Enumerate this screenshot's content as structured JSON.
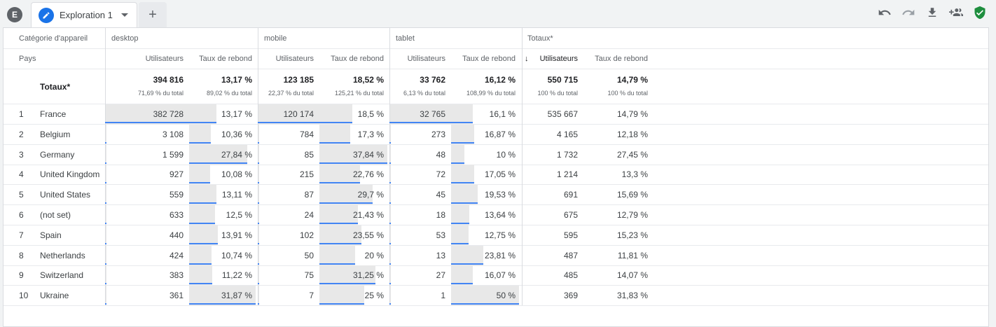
{
  "header": {
    "avatar_letter": "E",
    "tab_title": "Exploration 1",
    "add_tab_symbol": "+",
    "tools": [
      "undo-icon",
      "redo-icon",
      "download-icon",
      "share-icon",
      "shield-check-icon"
    ]
  },
  "colors": {
    "accent": "#1a73e8",
    "bar_fill": "#e8e8e8",
    "bar_line": "#4285f4",
    "shield": "#1e8e3e"
  },
  "table": {
    "dim_header": "Catégorie d'appareil",
    "row_dim_header": "Pays",
    "groups": [
      "desktop",
      "mobile",
      "tablet",
      "Totaux*"
    ],
    "metric_users": "Utilisateurs",
    "metric_bounce": "Taux de rebond",
    "sort_arrow": "↓",
    "totals_label": "Totaux*",
    "totals": [
      {
        "users": "394 816",
        "users_pct": "71,69 % du total",
        "bounce": "13,17 %",
        "bounce_pct": "89,02 % du total"
      },
      {
        "users": "123 185",
        "users_pct": "22,37 % du total",
        "bounce": "18,52 %",
        "bounce_pct": "125,21 % du total"
      },
      {
        "users": "33 762",
        "users_pct": "6,13 % du total",
        "bounce": "16,12 %",
        "bounce_pct": "108,99 % du total"
      },
      {
        "users": "550 715",
        "users_pct": "100 % du total",
        "bounce": "14,79 %",
        "bounce_pct": "100 % du total"
      }
    ],
    "rows": [
      {
        "idx": "1",
        "country": "France",
        "cells": [
          [
            "382 728",
            382728,
            "13,17 %",
            13.17
          ],
          [
            "120 174",
            120174,
            "18,5 %",
            18.5
          ],
          [
            "32 765",
            32765,
            "16,1 %",
            16.1
          ],
          [
            "535 667",
            535667,
            "14,79 %",
            14.79
          ]
        ]
      },
      {
        "idx": "2",
        "country": "Belgium",
        "cells": [
          [
            "3 108",
            3108,
            "10,36 %",
            10.36
          ],
          [
            "784",
            784,
            "17,3 %",
            17.3
          ],
          [
            "273",
            273,
            "16,87 %",
            16.87
          ],
          [
            "4 165",
            4165,
            "12,18 %",
            12.18
          ]
        ]
      },
      {
        "idx": "3",
        "country": "Germany",
        "cells": [
          [
            "1 599",
            1599,
            "27,84 %",
            27.84
          ],
          [
            "85",
            85,
            "37,84 %",
            37.84
          ],
          [
            "48",
            48,
            "10 %",
            10
          ],
          [
            "1 732",
            1732,
            "27,45 %",
            27.45
          ]
        ]
      },
      {
        "idx": "4",
        "country": "United Kingdom",
        "cells": [
          [
            "927",
            927,
            "10,08 %",
            10.08
          ],
          [
            "215",
            215,
            "22,76 %",
            22.76
          ],
          [
            "72",
            72,
            "17,05 %",
            17.05
          ],
          [
            "1 214",
            1214,
            "13,3 %",
            13.3
          ]
        ]
      },
      {
        "idx": "5",
        "country": "United States",
        "cells": [
          [
            "559",
            559,
            "13,11 %",
            13.11
          ],
          [
            "87",
            87,
            "29,7 %",
            29.7
          ],
          [
            "45",
            45,
            "19,53 %",
            19.53
          ],
          [
            "691",
            691,
            "15,69 %",
            15.69
          ]
        ]
      },
      {
        "idx": "6",
        "country": "(not set)",
        "cells": [
          [
            "633",
            633,
            "12,5 %",
            12.5
          ],
          [
            "24",
            24,
            "21,43 %",
            21.43
          ],
          [
            "18",
            18,
            "13,64 %",
            13.64
          ],
          [
            "675",
            675,
            "12,79 %",
            12.79
          ]
        ]
      },
      {
        "idx": "7",
        "country": "Spain",
        "cells": [
          [
            "440",
            440,
            "13,91 %",
            13.91
          ],
          [
            "102",
            102,
            "23,55 %",
            23.55
          ],
          [
            "53",
            53,
            "12,75 %",
            12.75
          ],
          [
            "595",
            595,
            "15,23 %",
            15.23
          ]
        ]
      },
      {
        "idx": "8",
        "country": "Netherlands",
        "cells": [
          [
            "424",
            424,
            "10,74 %",
            10.74
          ],
          [
            "50",
            50,
            "20 %",
            20
          ],
          [
            "13",
            13,
            "23,81 %",
            23.81
          ],
          [
            "487",
            487,
            "11,81 %",
            11.81
          ]
        ]
      },
      {
        "idx": "9",
        "country": "Switzerland",
        "cells": [
          [
            "383",
            383,
            "11,22 %",
            11.22
          ],
          [
            "75",
            75,
            "31,25 %",
            31.25
          ],
          [
            "27",
            27,
            "16,07 %",
            16.07
          ],
          [
            "485",
            485,
            "14,07 %",
            14.07
          ]
        ]
      },
      {
        "idx": "10",
        "country": "Ukraine",
        "cells": [
          [
            "361",
            361,
            "31,87 %",
            31.87
          ],
          [
            "7",
            7,
            "25 %",
            25
          ],
          [
            "1",
            1,
            "50 %",
            50
          ],
          [
            "369",
            369,
            "31,83 %",
            31.83
          ]
        ]
      }
    ]
  }
}
